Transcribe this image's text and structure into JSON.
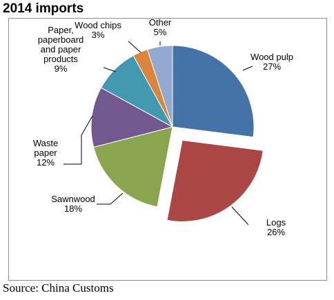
{
  "chart_data": {
    "type": "pie",
    "title": "2014 imports",
    "source": "Source: China Customs",
    "slices": [
      {
        "label_lines": [
          "Wood pulp"
        ],
        "pct_text": "27%",
        "value": 27,
        "color": "#4572a7"
      },
      {
        "label_lines": [
          "Logs"
        ],
        "pct_text": "26%",
        "value": 26,
        "color": "#aa4643",
        "exploded": true
      },
      {
        "label_lines": [
          "Sawnwood"
        ],
        "pct_text": "18%",
        "value": 18,
        "color": "#89a54e"
      },
      {
        "label_lines": [
          "Waste",
          "paper"
        ],
        "pct_text": "12%",
        "value": 12,
        "color": "#71588f"
      },
      {
        "label_lines": [
          "Paper,",
          "paperboard",
          "and paper",
          "products"
        ],
        "pct_text": "9%",
        "value": 9,
        "color": "#4198af"
      },
      {
        "label_lines": [
          "Wood  chips"
        ],
        "pct_text": "3%",
        "value": 3,
        "color": "#db843d"
      },
      {
        "label_lines": [
          "Other"
        ],
        "pct_text": "5%",
        "value": 5,
        "color": "#93a9cf"
      }
    ]
  }
}
